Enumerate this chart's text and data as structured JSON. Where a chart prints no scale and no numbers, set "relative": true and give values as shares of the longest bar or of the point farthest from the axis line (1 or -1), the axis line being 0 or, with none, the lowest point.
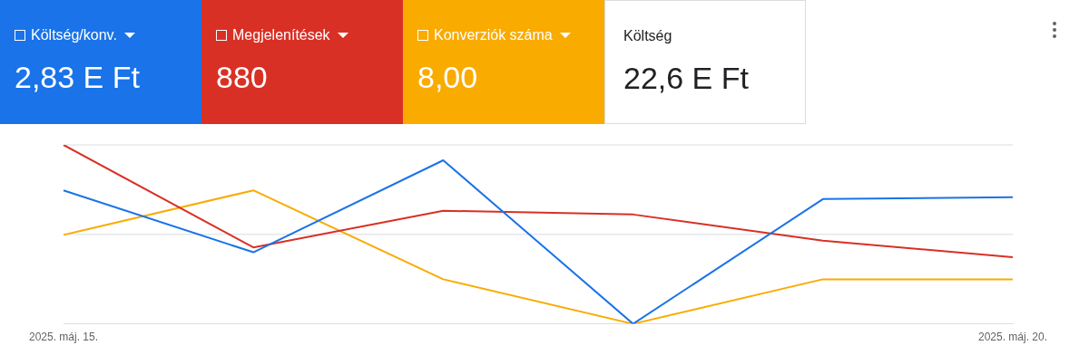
{
  "chart_data": {
    "type": "line",
    "relative": true,
    "legend": "top left",
    "ref_lines": [
      {
        "axis": "y",
        "value": 0.5,
        "color": "#dadce0"
      },
      {
        "axis": "y",
        "value": 1,
        "color": "#dadce0"
      }
    ],
    "marker": "none",
    "line_style": "solid",
    "categories": [
      "2025. máj. 15.",
      null,
      null,
      null,
      null,
      "2025. máj. 20."
    ],
    "series": [
      {
        "name": "Költség/konv.",
        "color": "#1a73e8",
        "values": [
          0.746,
          0.4,
          0.914,
          0,
          0.697,
          0.708
        ]
      },
      {
        "name": "Megjelenítések",
        "color": "#d93025",
        "values": [
          1,
          0.427,
          0.632,
          0.611,
          0.465,
          0.373
        ]
      },
      {
        "name": "Konverziók száma",
        "color": "#f9ab00",
        "values": [
          0.497,
          0.746,
          0.249,
          0,
          0.249,
          0.249
        ]
      }
    ],
    "annotations": [
      "2,83 E Ft",
      "880",
      "8,00",
      "Költség",
      "22,6 E Ft"
    ]
  }
}
